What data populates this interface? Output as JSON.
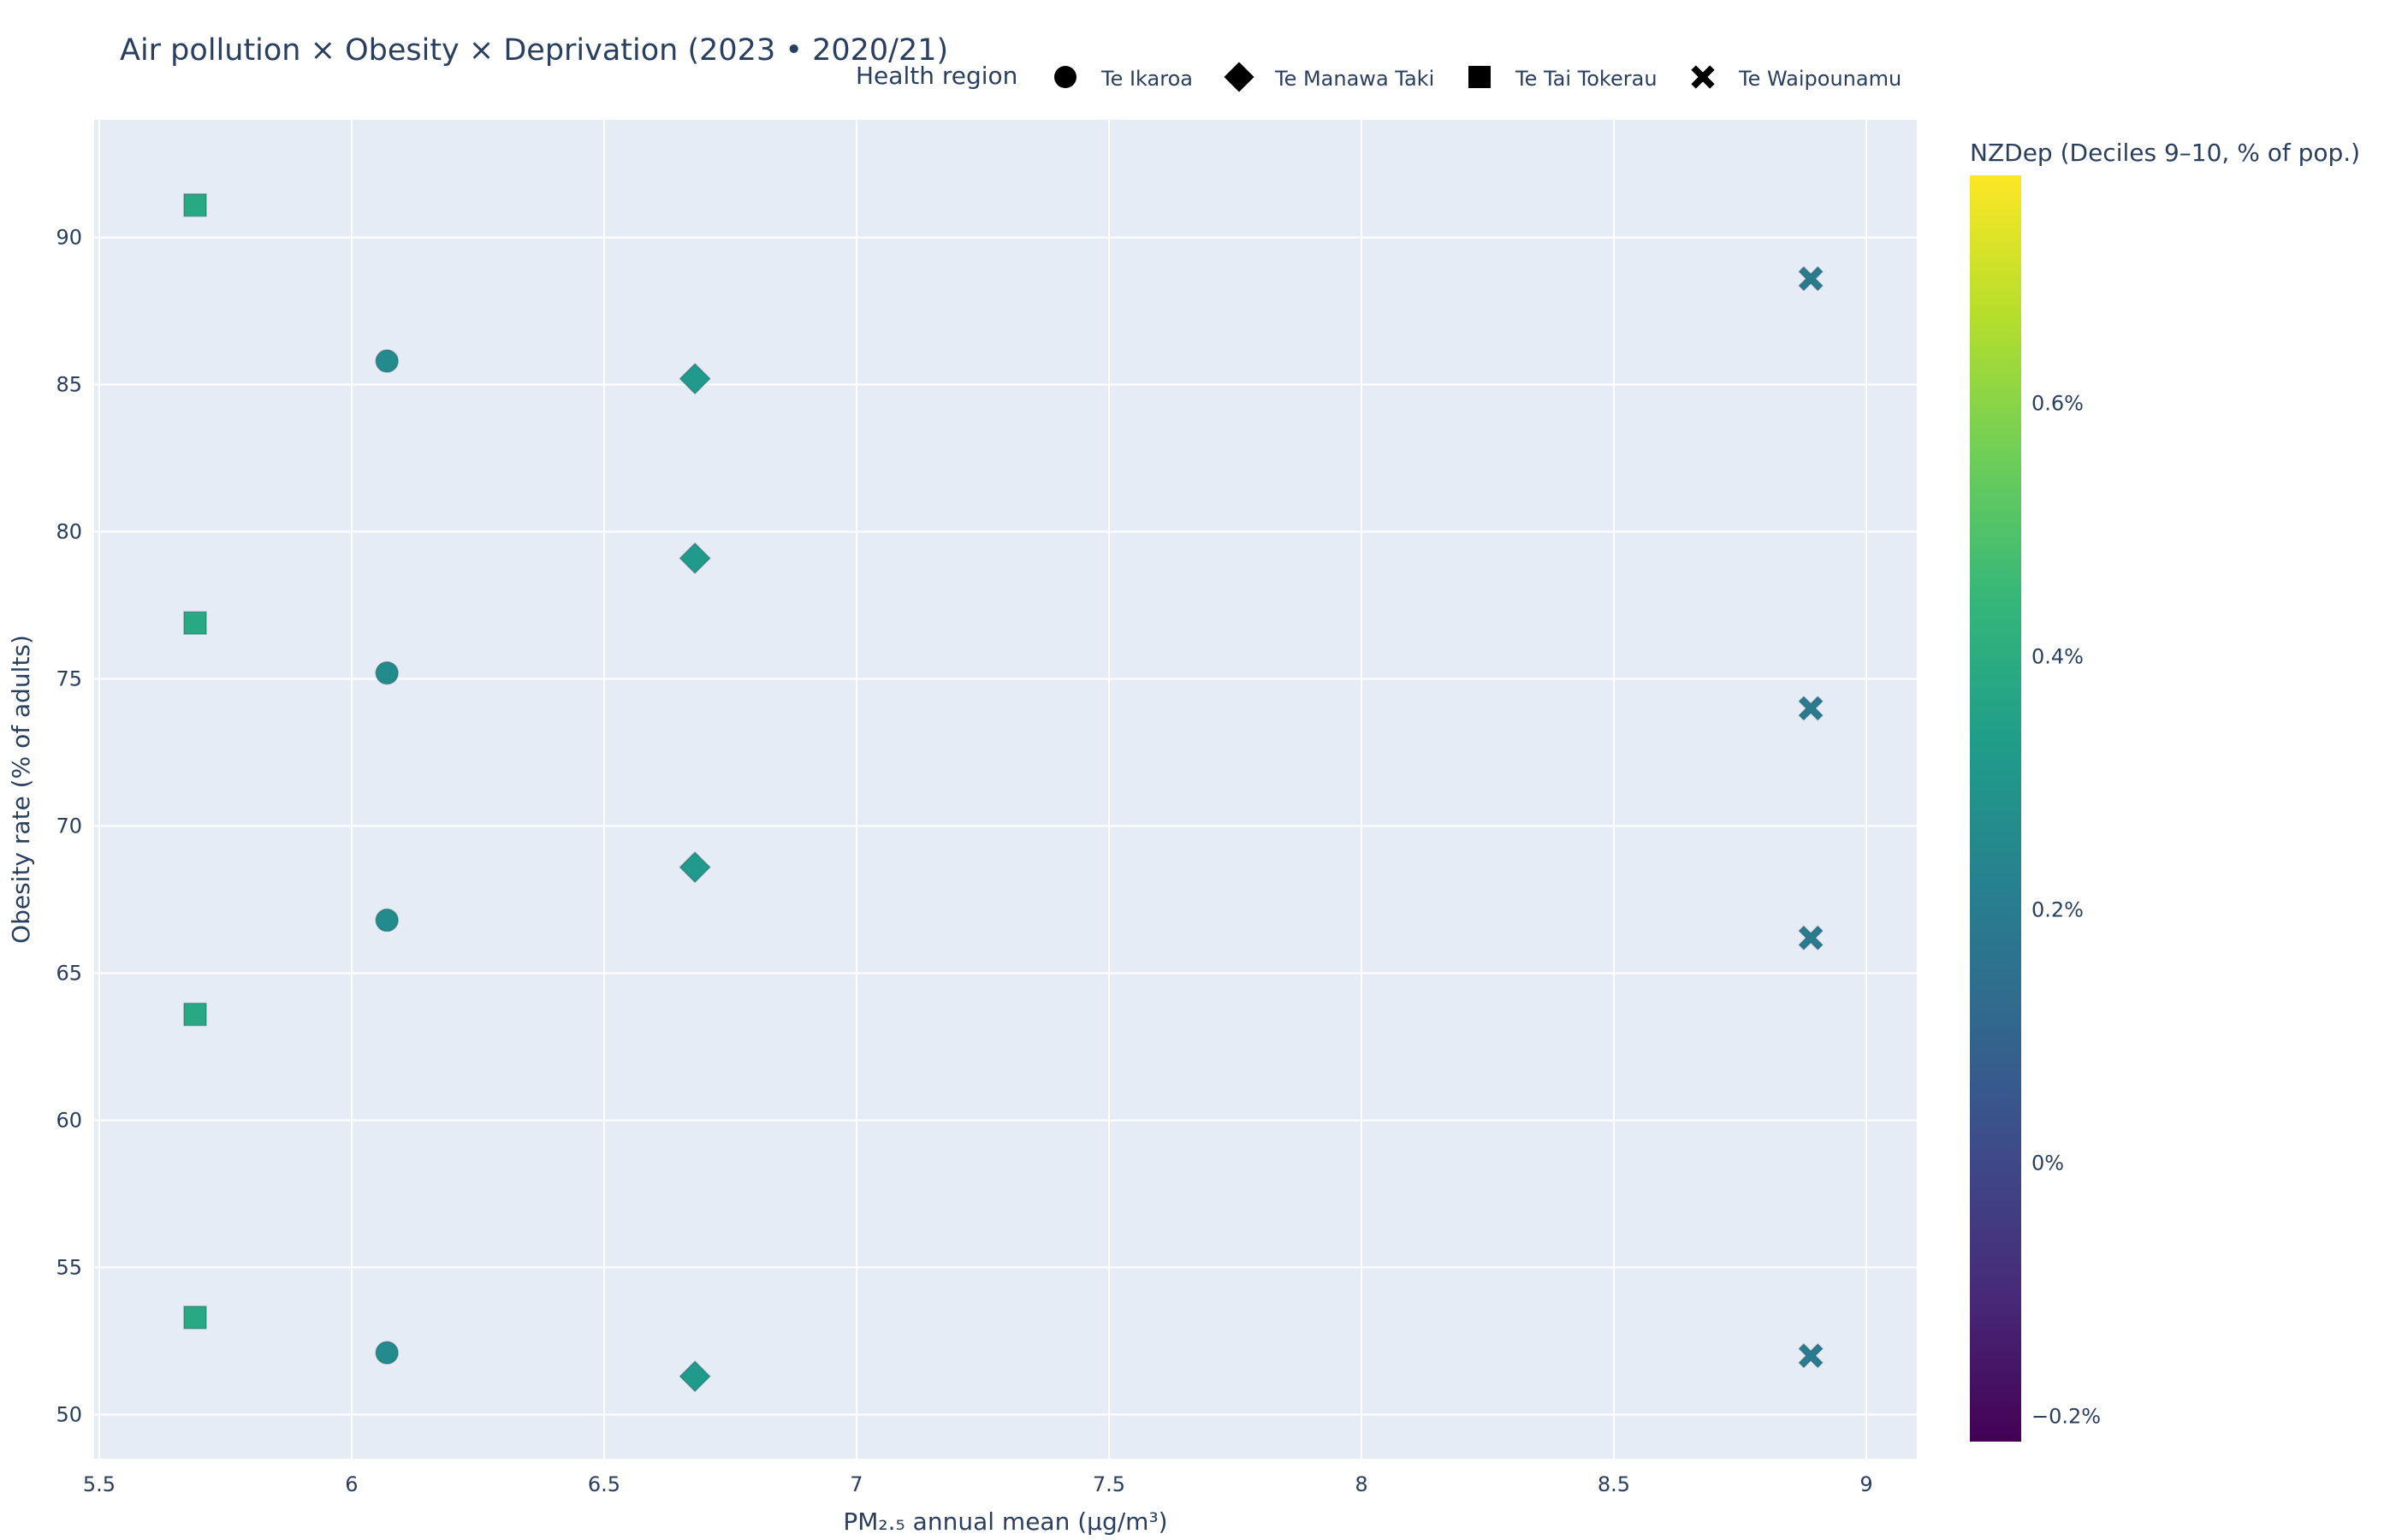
{
  "chart_data": {
    "type": "scatter",
    "title": "Air pollution × Obesity × Deprivation (2023 • 2020/21)",
    "xlabel": "PM₂.₅ annual mean (µg/m³)",
    "ylabel": "Obesity rate (% of adults)",
    "xlim": [
      5.49,
      9.1
    ],
    "ylim": [
      48.5,
      94
    ],
    "x_ticks": [
      5.5,
      6,
      6.5,
      7,
      7.5,
      8,
      8.5,
      9
    ],
    "x_tick_labels": [
      "5.5",
      "6",
      "6.5",
      "7",
      "7.5",
      "8",
      "8.5",
      "9"
    ],
    "y_ticks": [
      50,
      55,
      60,
      65,
      70,
      75,
      80,
      85,
      90
    ],
    "y_tick_labels": [
      "50",
      "55",
      "60",
      "65",
      "70",
      "75",
      "80",
      "85",
      "90"
    ],
    "grid": true,
    "plot_bgcolor": "#e5ecf6",
    "legend": {
      "title": "Health region",
      "placement": "top-right, horizontal"
    },
    "colorbar": {
      "title": "NZDep (Deciles 9–10, % of pop.)",
      "range": [
        -0.22,
        0.78
      ],
      "ticks": [
        -0.2,
        0,
        0.2,
        0.4,
        0.6
      ],
      "tick_labels": [
        "−0.2%",
        "0%",
        "0.2%",
        "0.4%",
        "0.6%"
      ],
      "colorscale": [
        "#440154",
        "#482878",
        "#3e4989",
        "#31688e",
        "#26828e",
        "#1f9e89",
        "#35b779",
        "#6ece58",
        "#b5de2b",
        "#fde725"
      ]
    },
    "series": [
      {
        "name": "Te Ikaroa",
        "symbol": "circle",
        "nzdep": 0.26,
        "x": [
          6.07,
          6.07,
          6.07,
          6.07
        ],
        "y": [
          85.8,
          75.2,
          66.8,
          52.1
        ]
      },
      {
        "name": "Te Manawa Taki",
        "symbol": "diamond",
        "nzdep": 0.32,
        "x": [
          6.68,
          6.68,
          6.68,
          6.68
        ],
        "y": [
          85.2,
          79.1,
          68.6,
          51.3
        ]
      },
      {
        "name": "Te Tai Tokerau",
        "symbol": "square",
        "nzdep": 0.38,
        "x": [
          5.69,
          5.69,
          5.69,
          5.69
        ],
        "y": [
          91.1,
          76.9,
          63.6,
          53.3
        ]
      },
      {
        "name": "Te Waipounamu",
        "symbol": "x",
        "nzdep": 0.2,
        "x": [
          8.89,
          8.89,
          8.89,
          8.89
        ],
        "y": [
          88.6,
          74.0,
          66.2,
          52.0
        ]
      }
    ]
  }
}
